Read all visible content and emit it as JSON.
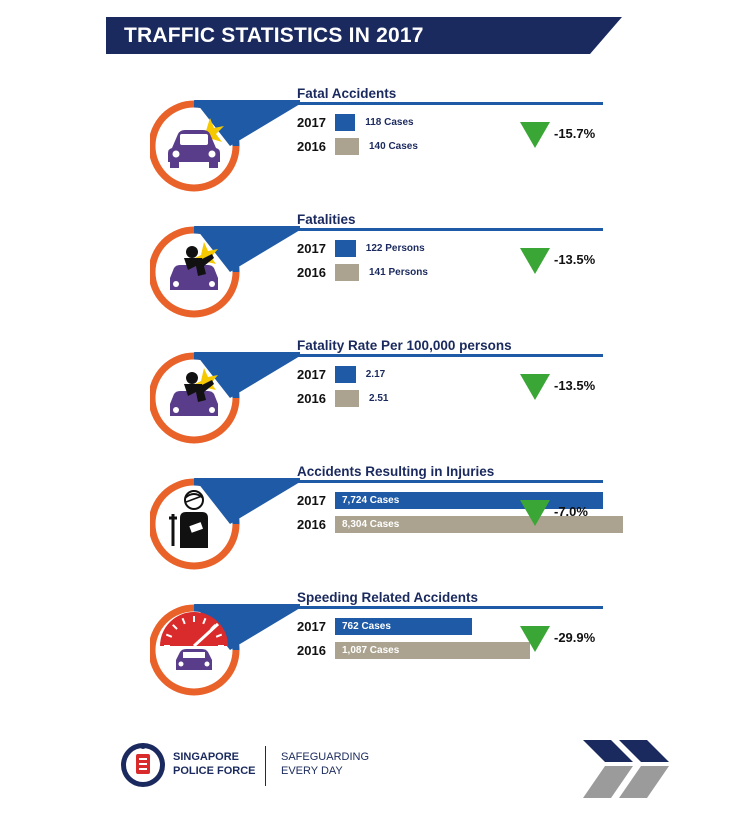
{
  "title": "TRAFFIC STATISTICS IN 2017",
  "colors": {
    "navy": "#1b2a5e",
    "blue": "#1f5aa6",
    "orange": "#e8622a",
    "bar_2016": "#aba38f",
    "icon_purple": "#5a3d8a",
    "down_green": "#3aa636",
    "speed_red": "#d92b2b",
    "grey_chevron": "#9b9b9b"
  },
  "chart_data": [
    {
      "type": "bar",
      "title": "Fatal Accidents",
      "icon": "car-crash-icon",
      "categories": [
        "2017",
        "2016"
      ],
      "values": [
        118,
        140
      ],
      "labels": [
        "118 Cases",
        "140 Cases"
      ],
      "change": "-15.7%"
    },
    {
      "type": "bar",
      "title": "Fatalities",
      "icon": "pedestrian-hit-icon",
      "categories": [
        "2017",
        "2016"
      ],
      "values": [
        122,
        141
      ],
      "labels": [
        "122 Persons",
        "141 Persons"
      ],
      "change": "-13.5%"
    },
    {
      "type": "bar",
      "title": "Fatality Rate Per 100,000 persons",
      "icon": "pedestrian-hit-icon",
      "categories": [
        "2017",
        "2016"
      ],
      "values": [
        2.17,
        2.51
      ],
      "labels": [
        "2.17",
        "2.51"
      ],
      "change": "-13.5%"
    },
    {
      "type": "bar",
      "title": "Accidents Resulting in Injuries",
      "icon": "injured-person-icon",
      "categories": [
        "2017",
        "2016"
      ],
      "values": [
        7724,
        8304
      ],
      "labels": [
        "7,724 Cases",
        "8,304 Cases"
      ],
      "change": "-7.0%"
    },
    {
      "type": "bar",
      "title": "Speeding Related Accidents",
      "icon": "speedometer-car-icon",
      "categories": [
        "2017",
        "2016"
      ],
      "values": [
        762,
        1087
      ],
      "labels": [
        "762 Cases",
        "1,087 Cases"
      ],
      "change": "-29.9%"
    }
  ],
  "footer": {
    "org_line1": "SINGAPORE",
    "org_line2": "POLICE FORCE",
    "tag_line1": "SAFEGUARDING",
    "tag_line2": "EVERY DAY",
    "logo": "police-crest-icon"
  }
}
